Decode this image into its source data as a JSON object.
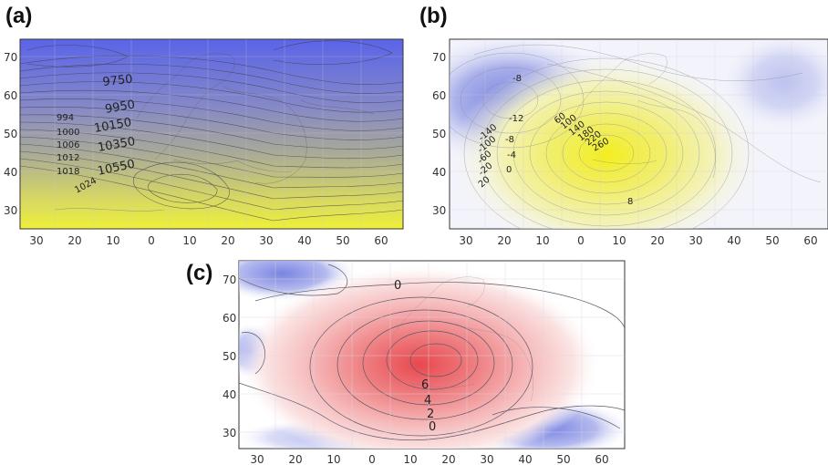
{
  "panels": [
    {
      "id": "a",
      "label": "(a)",
      "y_ticks": [
        "70",
        "60",
        "50",
        "40",
        "30"
      ],
      "x_ticks": [
        "30",
        "20",
        "10",
        "0",
        "10",
        "20",
        "30",
        "40",
        "50",
        "60"
      ],
      "contour_labels": [
        "9750",
        "9950",
        "10150",
        "10350",
        "10550",
        "994",
        "1000",
        "1006",
        "1012",
        "1018",
        "1024"
      ],
      "colors": {
        "top": "#5a66e6",
        "bottom": "#e8ec3a",
        "mid": "#a6a8a0"
      }
    },
    {
      "id": "b",
      "label": "(b)",
      "y_ticks": [
        "70",
        "60",
        "50",
        "40",
        "30"
      ],
      "x_ticks": [
        "30",
        "20",
        "10",
        "0",
        "10",
        "20",
        "30",
        "40",
        "50",
        "60"
      ],
      "contour_labels": [
        "-8",
        "-12",
        "-8",
        "-4",
        "0",
        "60",
        "100",
        "140",
        "180",
        "220",
        "260",
        "-140",
        "-100",
        "-60",
        "-20",
        "20",
        "8"
      ],
      "colors": {
        "low": "#6f7ae0",
        "high": "#f4f03a",
        "background": "#f5f6fb"
      }
    },
    {
      "id": "c",
      "label": "(c)",
      "y_ticks": [
        "70",
        "60",
        "50",
        "40",
        "30"
      ],
      "x_ticks": [
        "30",
        "20",
        "10",
        "0",
        "10",
        "20",
        "30",
        "40",
        "50",
        "60"
      ],
      "contour_labels": [
        "0",
        "6",
        "4",
        "2",
        "0"
      ],
      "colors": {
        "positive": "#e8494f",
        "negative": "#6f79e0",
        "background": "#ffffff"
      }
    }
  ]
}
